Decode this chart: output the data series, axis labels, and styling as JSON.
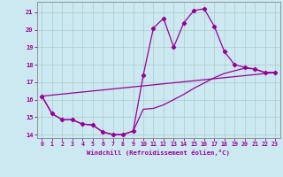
{
  "xlabel": "Windchill (Refroidissement éolien,°C)",
  "background_color": "#cce8f0",
  "line_color": "#990099",
  "grid_color": "#aacccc",
  "xlim": [
    -0.5,
    23.5
  ],
  "ylim": [
    13.8,
    21.6
  ],
  "yticks": [
    14,
    15,
    16,
    17,
    18,
    19,
    20,
    21
  ],
  "xticks": [
    0,
    1,
    2,
    3,
    4,
    5,
    6,
    7,
    8,
    9,
    10,
    11,
    12,
    13,
    14,
    15,
    16,
    17,
    18,
    19,
    20,
    21,
    22,
    23
  ],
  "curve1_x": [
    0,
    1,
    2,
    3,
    4,
    5,
    6,
    7,
    8,
    9,
    10,
    11,
    12,
    13,
    14,
    15,
    16,
    17,
    18,
    19,
    20,
    21,
    22,
    23
  ],
  "curve1_y": [
    16.2,
    15.2,
    14.85,
    14.85,
    14.6,
    14.55,
    14.15,
    14.0,
    14.0,
    14.2,
    17.4,
    20.1,
    20.65,
    19.0,
    20.4,
    21.1,
    21.2,
    20.2,
    18.75,
    18.0,
    17.85,
    17.75,
    17.55,
    17.55
  ],
  "curve2_x": [
    0,
    1,
    2,
    3,
    4,
    5,
    6,
    7,
    8,
    9,
    10,
    11,
    12,
    13,
    14,
    15,
    16,
    17,
    18,
    19,
    20,
    21,
    22,
    23
  ],
  "curve2_y": [
    16.2,
    15.2,
    14.85,
    14.85,
    14.6,
    14.55,
    14.15,
    14.0,
    14.0,
    14.2,
    15.45,
    15.5,
    15.7,
    16.0,
    16.3,
    16.65,
    16.95,
    17.25,
    17.5,
    17.65,
    17.8,
    17.75,
    17.55,
    17.55
  ],
  "curve3_x": [
    0,
    23
  ],
  "curve3_y": [
    16.2,
    17.55
  ]
}
